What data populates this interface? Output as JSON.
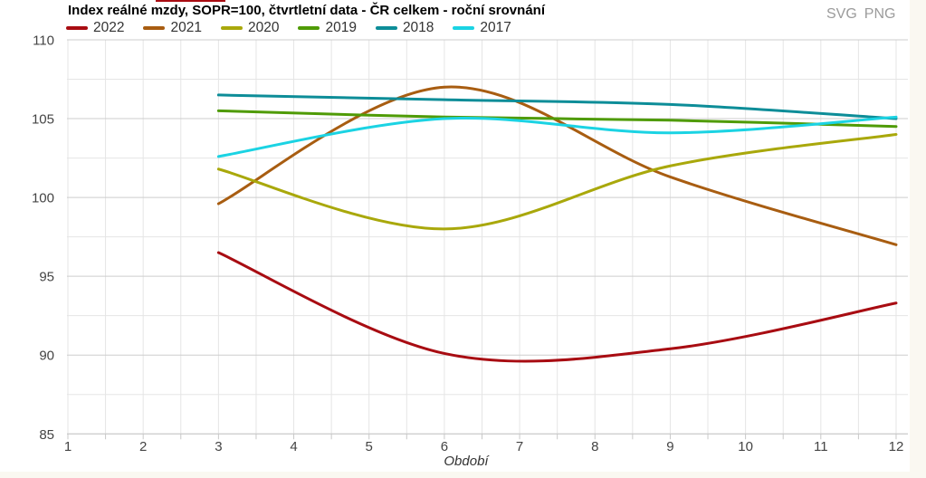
{
  "page": {
    "background_color": "#faf8f1",
    "panel_color": "#ffffff"
  },
  "header": {
    "title": "Index reálné mzdy, SOPR=100, čtvrtletní data - ČR celkem - roční srovnání",
    "export_links": {
      "svg": "SVG",
      "png": "PNG"
    },
    "export_color": "#9b9b9b"
  },
  "chart_data": {
    "type": "line",
    "title": "Index reálné mzdy, SOPR=100, čtvrtletní data - ČR celkem - roční srovnání",
    "xlabel": "Období",
    "ylabel": "",
    "x": [
      3,
      6,
      9,
      12
    ],
    "xlim": [
      1,
      12
    ],
    "ylim": [
      85,
      110
    ],
    "x_ticks": [
      1,
      2,
      3,
      4,
      5,
      6,
      7,
      8,
      9,
      10,
      11,
      12
    ],
    "y_ticks": [
      85,
      90,
      95,
      100,
      105,
      110
    ],
    "y_minor_ticks": [
      87.5,
      92.5,
      97.5,
      102.5,
      107.5
    ],
    "grid": true,
    "legend_position": "top",
    "curve": "spline",
    "series": [
      {
        "name": "2022",
        "color": "#a80c12",
        "values": [
          96.5,
          90.1,
          90.4,
          93.3
        ]
      },
      {
        "name": "2021",
        "color": "#a85d11",
        "values": [
          99.6,
          107.0,
          101.3,
          97.0
        ]
      },
      {
        "name": "2020",
        "color": "#a9a80b",
        "values": [
          101.8,
          98.0,
          102.0,
          104.0
        ]
      },
      {
        "name": "2019",
        "color": "#4f9b06",
        "values": [
          105.5,
          105.1,
          104.9,
          104.5
        ]
      },
      {
        "name": "2018",
        "color": "#0d8d98",
        "values": [
          106.5,
          106.2,
          105.9,
          105.0
        ]
      },
      {
        "name": "2017",
        "color": "#1bd3e3",
        "values": [
          102.6,
          105.0,
          104.1,
          105.1
        ]
      }
    ],
    "axis_label_color": "#444444",
    "grid_major_color": "#cdcdcd",
    "grid_minor_color": "#e5e5e5",
    "axis_line_color": "#c8c8c8"
  }
}
